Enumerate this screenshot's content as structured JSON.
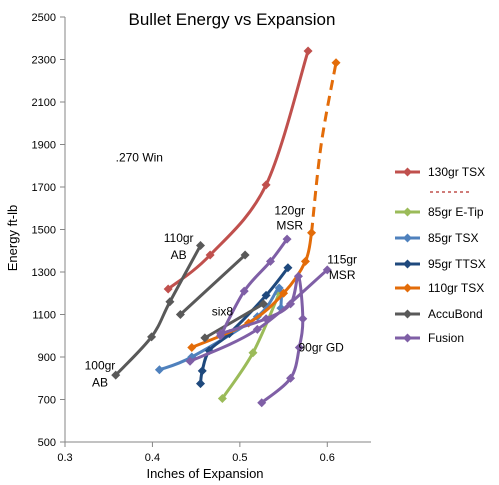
{
  "chart_data": {
    "type": "line",
    "title": "Bullet Energy vs Expansion",
    "xlabel": "Inches of Expansion",
    "ylabel": "Energy ft-lb",
    "xlim": [
      0.3,
      0.65
    ],
    "ylim": [
      500,
      2500
    ],
    "x_ticks": [
      "0.3",
      "0.4",
      "0.5",
      "0.6"
    ],
    "x_tick_values": [
      0.3,
      0.4,
      0.5,
      0.6
    ],
    "y_ticks": [
      "500",
      "700",
      "900",
      "1100",
      "1300",
      "1500",
      "1700",
      "1900",
      "2100",
      "2300",
      "2500"
    ],
    "y_tick_values": [
      500,
      700,
      900,
      1100,
      1300,
      1500,
      1700,
      1900,
      2100,
      2300,
      2500
    ],
    "grid": false,
    "legend_position": "right",
    "series": [
      {
        "name": "130gr TSX",
        "color": "#c0504d",
        "marker": "diamond",
        "points": [
          [
            0.418,
            1220
          ],
          [
            0.466,
            1380
          ],
          [
            0.53,
            1710
          ],
          [
            0.578,
            2340
          ]
        ]
      },
      {
        "name": "85gr E-Tip",
        "color": "#9bbb59",
        "marker": "diamond",
        "points": [
          [
            0.48,
            705
          ],
          [
            0.515,
            920
          ],
          [
            0.545,
            1200
          ]
        ]
      },
      {
        "name": "85gr TSX",
        "color": "#4f81bd",
        "marker": "diamond",
        "points": [
          [
            0.408,
            840
          ],
          [
            0.445,
            900
          ],
          [
            0.52,
            1090
          ],
          [
            0.545,
            1225
          ],
          [
            0.547,
            1130
          ]
        ]
      },
      {
        "name": "95gr TTSX",
        "color": "#1f497d",
        "marker": "diamond",
        "points": [
          [
            0.455,
            775
          ],
          [
            0.457,
            835
          ],
          [
            0.465,
            930
          ],
          [
            0.488,
            1010
          ],
          [
            0.53,
            1190
          ],
          [
            0.555,
            1320
          ]
        ]
      },
      {
        "name": "110gr TSX",
        "color": "#e36c09",
        "marker": "diamond",
        "points": [
          [
            0.445,
            945
          ],
          [
            0.51,
            1060
          ],
          [
            0.55,
            1200
          ],
          [
            0.575,
            1350
          ],
          [
            0.582,
            1485
          ],
          [
            0.593,
            1900
          ],
          [
            0.61,
            2285
          ]
        ],
        "dashed_from_index": 4
      },
      {
        "name": "AccuBond",
        "color": "#595959",
        "marker": "diamond",
        "points": [
          [
            0.358,
            815
          ],
          [
            0.399,
            995
          ],
          [
            0.42,
            1160
          ],
          [
            0.455,
            1425
          ]
        ],
        "extra_segments": [
          {
            "points": [
              [
                0.432,
                1100
              ],
              [
                0.506,
                1380
              ]
            ]
          },
          {
            "points": [
              [
                0.46,
                990
              ],
              [
                0.527,
                1150
              ]
            ]
          }
        ]
      },
      {
        "name": "Fusion",
        "color": "#7f5fa6",
        "marker": "diamond",
        "points": [
          [
            0.525,
            685
          ],
          [
            0.558,
            800
          ],
          [
            0.568,
            945
          ],
          [
            0.572,
            1080
          ],
          [
            0.567,
            1280
          ],
          [
            0.558,
            1150
          ],
          [
            0.53,
            1080
          ],
          [
            0.478,
            1010
          ]
        ],
        "extra_segments": [
          {
            "points": [
              [
                0.443,
                880
              ],
              [
                0.52,
                1030
              ],
              [
                0.6,
                1310
              ]
            ]
          },
          {
            "points": [
              [
                0.478,
                1000
              ],
              [
                0.505,
                1210
              ],
              [
                0.535,
                1350
              ],
              [
                0.554,
                1455
              ]
            ]
          }
        ]
      }
    ],
    "legend_separator_color": "#c0504d",
    "annotations": [
      {
        "text": ".270 Win",
        "x": 0.385,
        "y": 1840
      },
      {
        "text": "110gr",
        "x": 0.43,
        "y": 1460
      },
      {
        "text": "AB",
        "x": 0.43,
        "y": 1380
      },
      {
        "text": "120gr",
        "x": 0.557,
        "y": 1590
      },
      {
        "text": "MSR",
        "x": 0.557,
        "y": 1520
      },
      {
        "text": "115gr",
        "x": 0.617,
        "y": 1360
      },
      {
        "text": "MSR",
        "x": 0.617,
        "y": 1285
      },
      {
        "text": "six8",
        "x": 0.48,
        "y": 1115
      },
      {
        "text": "100gr",
        "x": 0.34,
        "y": 860
      },
      {
        "text": "AB",
        "x": 0.34,
        "y": 780
      },
      {
        "text": "90gr GD",
        "x": 0.593,
        "y": 945
      }
    ]
  }
}
